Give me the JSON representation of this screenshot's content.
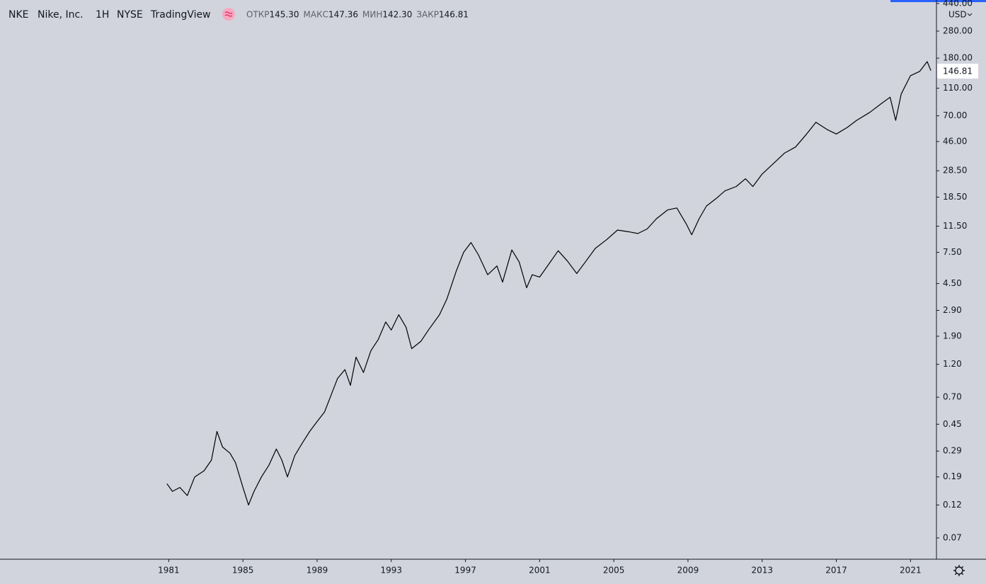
{
  "header": {
    "symbol": "NKE",
    "name": "Nike, Inc.",
    "interval": "1H",
    "exchange": "NYSE",
    "source": "TradingView",
    "ohlc": [
      {
        "label": "ОТКР",
        "value": "145.30"
      },
      {
        "label": "МАКС",
        "value": "147.36"
      },
      {
        "label": "МИН",
        "value": "142.30"
      },
      {
        "label": "ЗАКР",
        "value": "146.81"
      }
    ],
    "currency": "USD",
    "last_price": "146.81"
  },
  "chart_data": {
    "type": "line",
    "log": true,
    "grid": false,
    "color": "#000000",
    "x": [
      1980.9,
      1981.2,
      1981.6,
      1982.0,
      1982.4,
      1982.9,
      1983.3,
      1983.6,
      1983.9,
      1984.3,
      1984.6,
      1985.0,
      1985.3,
      1985.6,
      1986.0,
      1986.4,
      1986.8,
      1987.1,
      1987.4,
      1987.8,
      1988.2,
      1988.6,
      1989.0,
      1989.4,
      1989.8,
      1990.1,
      1990.5,
      1990.8,
      1991.1,
      1991.5,
      1991.9,
      1992.3,
      1992.7,
      1993.0,
      1993.4,
      1993.8,
      1994.1,
      1994.6,
      1995.0,
      1995.6,
      1996.0,
      1996.5,
      1996.9,
      1997.3,
      1997.7,
      1998.2,
      1998.7,
      1999.0,
      1999.5,
      1999.9,
      2000.3,
      2000.6,
      2001.0,
      2001.5,
      2002.0,
      2002.5,
      2003.0,
      2003.5,
      2004.0,
      2004.6,
      2005.2,
      2005.8,
      2006.3,
      2006.8,
      2007.3,
      2007.9,
      2008.4,
      2008.9,
      2009.2,
      2009.6,
      2010.0,
      2010.5,
      2011.0,
      2011.6,
      2012.1,
      2012.5,
      2013.0,
      2013.6,
      2014.2,
      2014.8,
      2015.4,
      2015.9,
      2016.5,
      2017.0,
      2017.6,
      2018.1,
      2018.8,
      2019.4,
      2019.9,
      2020.2,
      2020.5,
      2021.0,
      2021.5,
      2021.9,
      2022.1
    ],
    "series": [
      {
        "name": "NKE",
        "color": "#000000",
        "values": [
          0.17,
          0.15,
          0.16,
          0.14,
          0.19,
          0.21,
          0.25,
          0.4,
          0.31,
          0.28,
          0.24,
          0.16,
          0.12,
          0.15,
          0.19,
          0.23,
          0.3,
          0.25,
          0.19,
          0.27,
          0.33,
          0.4,
          0.47,
          0.55,
          0.75,
          0.95,
          1.1,
          0.85,
          1.35,
          1.05,
          1.5,
          1.8,
          2.4,
          2.1,
          2.7,
          2.2,
          1.55,
          1.75,
          2.1,
          2.7,
          3.5,
          5.5,
          7.5,
          8.8,
          7.2,
          5.2,
          6.0,
          4.6,
          7.8,
          6.4,
          4.2,
          5.2,
          5.0,
          6.2,
          7.7,
          6.5,
          5.3,
          6.5,
          8.0,
          9.2,
          10.8,
          10.5,
          10.2,
          11.0,
          13.0,
          15.0,
          15.5,
          12.0,
          10.0,
          13.0,
          16.0,
          18.0,
          20.5,
          22.0,
          25.0,
          22.0,
          27.0,
          32.0,
          38.0,
          42.0,
          52.0,
          63.0,
          56.0,
          52.0,
          58.0,
          65.0,
          74.0,
          85.0,
          95.0,
          65.0,
          100.0,
          135.0,
          145.0,
          170.0,
          146.81
        ]
      }
    ],
    "xlim": [
      1971.9,
      2022.4
    ],
    "xticks": [
      1981,
      1985,
      1989,
      1993,
      1997,
      2001,
      2005,
      2009,
      2013,
      2017,
      2021
    ],
    "ylim": [
      0.0494,
      466
    ],
    "yticks": [
      {
        "value": 440,
        "label": "440.00"
      },
      {
        "value": 280,
        "label": "280.00"
      },
      {
        "value": 180,
        "label": "180.00"
      },
      {
        "value": 110,
        "label": "110.00"
      },
      {
        "value": 70,
        "label": "70.00"
      },
      {
        "value": 46,
        "label": "46.00"
      },
      {
        "value": 28.5,
        "label": "28.50"
      },
      {
        "value": 18.5,
        "label": "18.50"
      },
      {
        "value": 11.5,
        "label": "11.50"
      },
      {
        "value": 7.5,
        "label": "7.50"
      },
      {
        "value": 4.5,
        "label": "4.50"
      },
      {
        "value": 2.9,
        "label": "2.90"
      },
      {
        "value": 1.9,
        "label": "1.90"
      },
      {
        "value": 1.2,
        "label": "1.20"
      },
      {
        "value": 0.7,
        "label": "0.70"
      },
      {
        "value": 0.45,
        "label": "0.45"
      },
      {
        "value": 0.29,
        "label": "0.29"
      },
      {
        "value": 0.19,
        "label": "0.19"
      },
      {
        "value": 0.12,
        "label": "0.12"
      },
      {
        "value": 0.07,
        "label": "0.07"
      }
    ]
  }
}
